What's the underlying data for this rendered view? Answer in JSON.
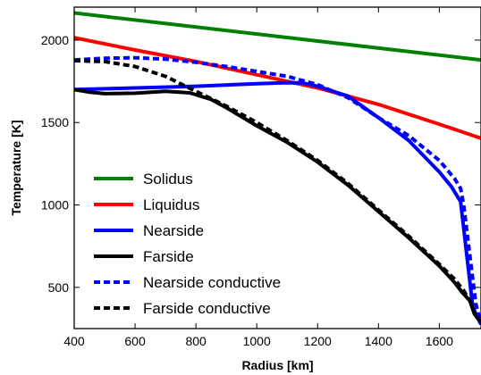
{
  "chart_data": {
    "type": "line",
    "xlabel": "Radius [km]",
    "ylabel": "Temperature [K]",
    "xlim": [
      400,
      1737
    ],
    "ylim": [
      250,
      2200
    ],
    "xticks": [
      400,
      600,
      800,
      1000,
      1200,
      1400,
      1600
    ],
    "yticks": [
      500,
      1000,
      1500,
      2000
    ],
    "grid": false,
    "legend_position": "lower-left",
    "series": [
      {
        "name": "Solidus",
        "color": "#008000",
        "style": "solid",
        "x": [
          400,
          1737
        ],
        "y": [
          2165,
          1880
        ]
      },
      {
        "name": "Liquidus",
        "color": "#ff0000",
        "style": "solid",
        "x": [
          400,
          600,
          800,
          1000,
          1200,
          1400,
          1600,
          1737
        ],
        "y": [
          2015,
          1940,
          1870,
          1790,
          1710,
          1610,
          1490,
          1405
        ]
      },
      {
        "name": "Nearside",
        "color": "#0000ff",
        "style": "solid",
        "x": [
          400,
          600,
          800,
          1000,
          1100,
          1150,
          1200,
          1300,
          1400,
          1500,
          1600,
          1640,
          1670,
          1690,
          1710,
          1737
        ],
        "y": [
          1700,
          1710,
          1720,
          1735,
          1742,
          1740,
          1720,
          1660,
          1530,
          1390,
          1200,
          1110,
          1020,
          700,
          380,
          275
        ]
      },
      {
        "name": "Farside",
        "color": "#000000",
        "style": "solid",
        "x": [
          400,
          450,
          500,
          600,
          700,
          780,
          850,
          900,
          1000,
          1100,
          1200,
          1300,
          1400,
          1500,
          1600,
          1650,
          1675,
          1700,
          1715,
          1737
        ],
        "y": [
          1700,
          1685,
          1675,
          1678,
          1690,
          1680,
          1640,
          1590,
          1480,
          1380,
          1260,
          1120,
          960,
          800,
          630,
          530,
          470,
          420,
          340,
          285
        ]
      },
      {
        "name": "Nearside conductive",
        "color": "#0000ff",
        "style": "dashed",
        "x": [
          400,
          500,
          600,
          700,
          800,
          900,
          1000,
          1100,
          1200,
          1300,
          1400,
          1500,
          1600,
          1650,
          1670,
          1680,
          1700,
          1720,
          1737
        ],
        "y": [
          1880,
          1890,
          1893,
          1885,
          1865,
          1840,
          1810,
          1780,
          1730,
          1650,
          1530,
          1420,
          1270,
          1160,
          1100,
          1000,
          700,
          400,
          280
        ]
      },
      {
        "name": "Farside conductive",
        "color": "#000000",
        "style": "dashed",
        "x": [
          400,
          500,
          600,
          700,
          800,
          900,
          1000,
          1100,
          1200,
          1300,
          1400,
          1500,
          1600,
          1650,
          1680,
          1700,
          1720,
          1737
        ],
        "y": [
          1875,
          1870,
          1840,
          1780,
          1690,
          1600,
          1500,
          1390,
          1270,
          1130,
          970,
          810,
          640,
          550,
          480,
          420,
          330,
          285
        ]
      }
    ]
  }
}
